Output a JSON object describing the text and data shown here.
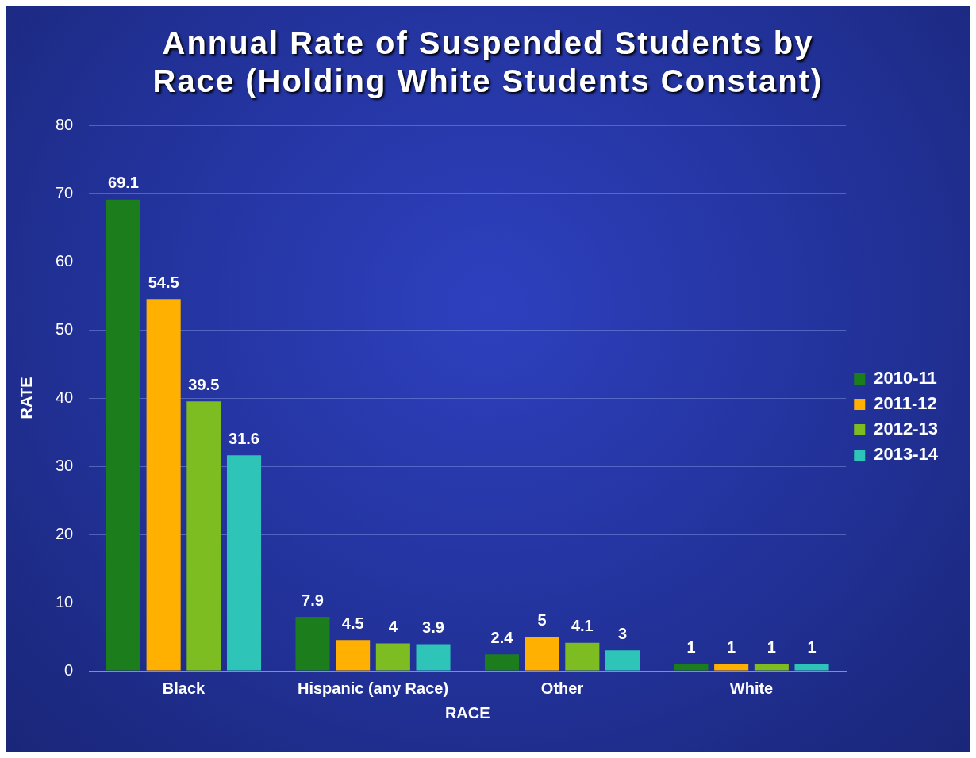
{
  "chart_data": {
    "type": "bar",
    "title": "Annual Rate of Suspended Students by Race (Holding White Students Constant)",
    "xlabel": "RACE",
    "ylabel": "RATE",
    "categories": [
      "Black",
      "Hispanic (any Race)",
      "Other",
      "White"
    ],
    "series": [
      {
        "name": "2010-11",
        "color": "#1b7d1b",
        "values": [
          69.1,
          7.9,
          2.4,
          1
        ]
      },
      {
        "name": "2011-12",
        "color": "#ffb000",
        "values": [
          54.5,
          4.5,
          5,
          1
        ]
      },
      {
        "name": "2012-13",
        "color": "#7dbd22",
        "values": [
          39.5,
          4,
          4.1,
          1
        ]
      },
      {
        "name": "2013-14",
        "color": "#2ec4b8",
        "values": [
          31.6,
          3.9,
          3,
          1
        ]
      }
    ],
    "ylim": [
      0,
      80
    ],
    "yticks": [
      0,
      10,
      20,
      30,
      40,
      50,
      60,
      70,
      80
    ],
    "grid": "y",
    "legend": "right",
    "data_labels": true
  }
}
